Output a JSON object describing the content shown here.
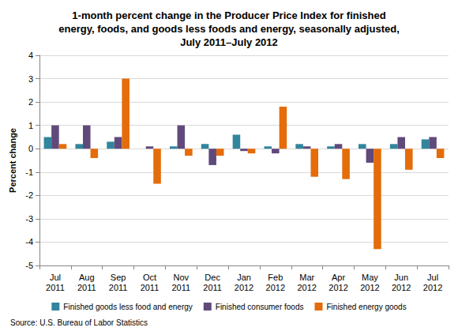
{
  "chart_data": {
    "type": "bar",
    "title": "1-month percent change in the Producer Price Index for finished\nenergy, foods, and goods less foods and energy, seasonally adjusted,\nJuly 2011–July 2012",
    "y_label": "Percent change",
    "source": "Source: U.S. Bureau of Labor Statistics",
    "categories": [
      "Jul 2011",
      "Aug 2011",
      "Sep 2011",
      "Oct 2011",
      "Nov 2011",
      "Dec 2011",
      "Jan 2012",
      "Feb 2012",
      "Mar 2012",
      "Apr 2012",
      "May 2012",
      "Jun 2012",
      "Jul 2012"
    ],
    "series": [
      {
        "name": "Finished goods less food and energy",
        "color": "#31859c",
        "values": [
          0.5,
          0.2,
          0.3,
          0.0,
          0.1,
          0.2,
          0.6,
          0.1,
          0.2,
          0.1,
          0.2,
          0.2,
          0.4
        ]
      },
      {
        "name": "Finished consumer foods",
        "color": "#604a7b",
        "values": [
          1.0,
          1.0,
          0.5,
          0.1,
          1.0,
          -0.7,
          -0.1,
          -0.2,
          0.1,
          0.2,
          -0.6,
          0.5,
          0.5
        ]
      },
      {
        "name": "Finished energy goods",
        "color": "#e46c0a",
        "values": [
          0.2,
          -0.4,
          3.0,
          -1.5,
          -0.3,
          -0.3,
          -0.2,
          1.8,
          -1.2,
          -1.3,
          -4.3,
          -0.9,
          -0.4
        ]
      }
    ],
    "ylim": [
      -5,
      4
    ],
    "yticks": [
      -5,
      -4,
      -3,
      -2,
      -1,
      0,
      1,
      2,
      3,
      4
    ],
    "grid": true,
    "legend": "bottom"
  }
}
